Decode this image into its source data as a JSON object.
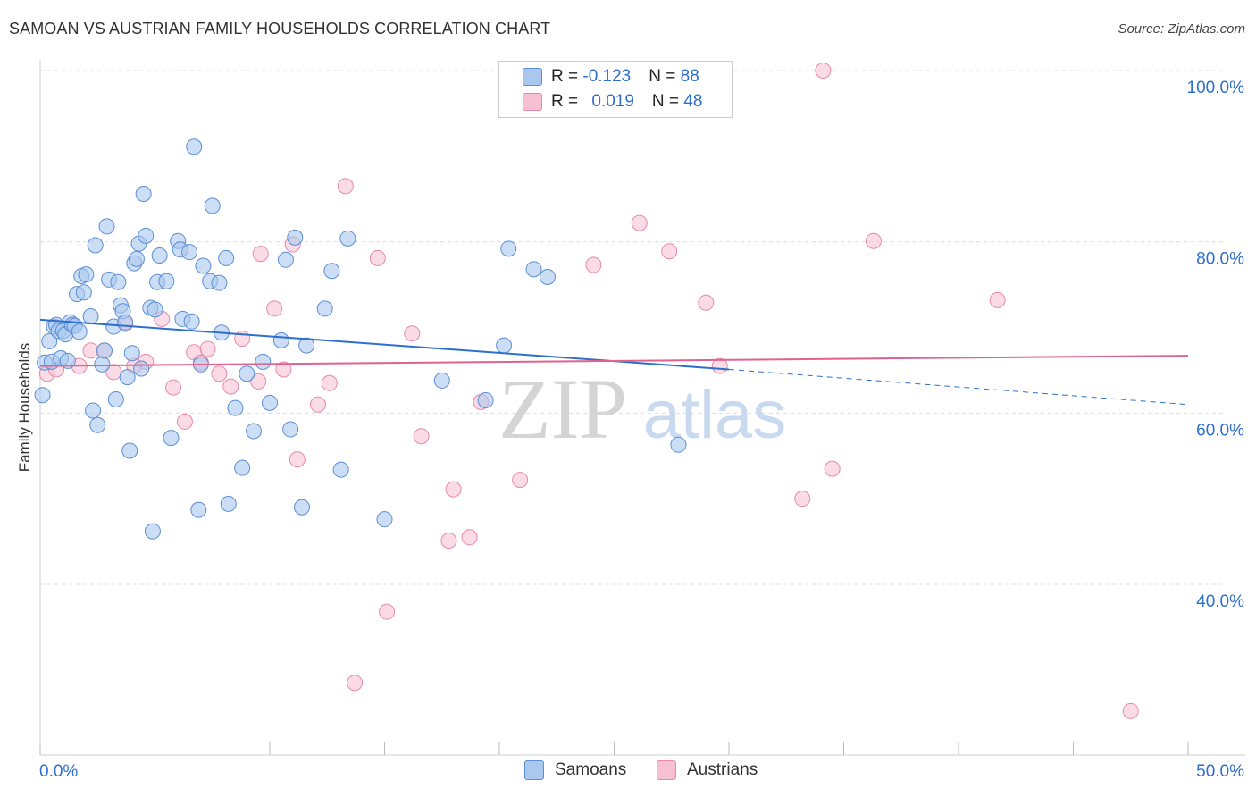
{
  "title": "SAMOAN VS AUSTRIAN FAMILY HOUSEHOLDS CORRELATION CHART",
  "source": "Source: ZipAtlas.com",
  "watermark": {
    "zip": "ZIP",
    "atlas": "atlas"
  },
  "legend_top": {
    "rows": [
      {
        "r_label": "R = ",
        "r_value": "-0.123",
        "n_label": "N = ",
        "n_value": "88"
      },
      {
        "r_label": "R = ",
        "r_value": "0.019",
        "n_label": "N = ",
        "n_value": "48"
      }
    ]
  },
  "legend_bottom": {
    "items": [
      {
        "label": "Samoans"
      },
      {
        "label": "Austrians"
      }
    ]
  },
  "colors": {
    "samoan_fill": "#aac8ee",
    "samoan_stroke": "#5b8fd4",
    "samoan_line": "#2c6fcd",
    "austrian_fill": "#f7bfd2",
    "austrian_stroke": "#e889aa",
    "austrian_line": "#e0628e",
    "axis_label": "#2c6fcd",
    "grid": "#dddddd"
  },
  "chart_data": {
    "type": "scatter",
    "title": "SAMOAN VS AUSTRIAN FAMILY HOUSEHOLDS CORRELATION CHART",
    "xlabel": "",
    "ylabel": "Family Households",
    "xlim": [
      0,
      50
    ],
    "ylim": [
      18,
      102
    ],
    "x_tick_labels": [
      "0.0%",
      "50.0%"
    ],
    "y_ticks": [
      40,
      60,
      80,
      100
    ],
    "y_tick_labels": [
      "40.0%",
      "60.0%",
      "80.0%",
      "100.0%"
    ],
    "series": [
      {
        "name": "Samoans",
        "r": -0.123,
        "n": 88,
        "trend": {
          "x0": 0,
          "y0": 70.9,
          "x1": 30,
          "y1": 65.1,
          "dash_to_x": 50,
          "dash_to_y": 61.0
        },
        "points": [
          [
            0.1,
            62.1
          ],
          [
            0.2,
            65.9
          ],
          [
            0.4,
            68.4
          ],
          [
            0.5,
            66.0
          ],
          [
            0.6,
            70.1
          ],
          [
            0.7,
            70.3
          ],
          [
            0.8,
            69.6
          ],
          [
            0.9,
            66.4
          ],
          [
            1.0,
            69.6
          ],
          [
            1.1,
            69.2
          ],
          [
            1.2,
            66.1
          ],
          [
            1.3,
            70.6
          ],
          [
            1.4,
            70.3
          ],
          [
            1.5,
            70.2
          ],
          [
            1.6,
            73.9
          ],
          [
            1.7,
            69.5
          ],
          [
            1.8,
            76.0
          ],
          [
            1.9,
            74.1
          ],
          [
            2.0,
            76.2
          ],
          [
            2.2,
            71.3
          ],
          [
            2.3,
            60.3
          ],
          [
            2.4,
            79.6
          ],
          [
            2.5,
            58.6
          ],
          [
            2.7,
            65.7
          ],
          [
            2.8,
            67.3
          ],
          [
            2.9,
            81.8
          ],
          [
            3.0,
            75.6
          ],
          [
            3.2,
            70.1
          ],
          [
            3.3,
            61.6
          ],
          [
            3.4,
            75.3
          ],
          [
            3.5,
            72.6
          ],
          [
            3.6,
            71.9
          ],
          [
            3.7,
            70.6
          ],
          [
            3.8,
            64.2
          ],
          [
            3.9,
            55.6
          ],
          [
            4.0,
            67.0
          ],
          [
            4.1,
            77.5
          ],
          [
            4.2,
            78.0
          ],
          [
            4.3,
            79.8
          ],
          [
            4.4,
            65.2
          ],
          [
            4.5,
            85.6
          ],
          [
            4.6,
            80.7
          ],
          [
            4.8,
            72.3
          ],
          [
            4.9,
            46.2
          ],
          [
            5.0,
            72.1
          ],
          [
            5.1,
            75.3
          ],
          [
            5.2,
            78.4
          ],
          [
            5.5,
            75.4
          ],
          [
            5.7,
            57.1
          ],
          [
            6.0,
            80.1
          ],
          [
            6.1,
            79.1
          ],
          [
            6.2,
            71.0
          ],
          [
            6.5,
            78.8
          ],
          [
            6.6,
            70.7
          ],
          [
            6.7,
            91.1
          ],
          [
            6.9,
            48.7
          ],
          [
            7.0,
            65.7
          ],
          [
            7.1,
            77.2
          ],
          [
            7.4,
            75.4
          ],
          [
            7.5,
            84.2
          ],
          [
            7.8,
            75.2
          ],
          [
            7.9,
            69.4
          ],
          [
            8.1,
            78.1
          ],
          [
            8.2,
            49.4
          ],
          [
            8.5,
            60.6
          ],
          [
            8.8,
            53.6
          ],
          [
            9.0,
            64.6
          ],
          [
            9.3,
            57.9
          ],
          [
            9.7,
            66.0
          ],
          [
            10.0,
            61.2
          ],
          [
            10.5,
            68.5
          ],
          [
            10.7,
            77.9
          ],
          [
            10.9,
            58.1
          ],
          [
            11.1,
            80.5
          ],
          [
            11.4,
            49.0
          ],
          [
            11.6,
            67.9
          ],
          [
            12.4,
            72.2
          ],
          [
            12.7,
            76.6
          ],
          [
            13.1,
            53.4
          ],
          [
            13.4,
            80.4
          ],
          [
            15.0,
            47.6
          ],
          [
            17.5,
            63.8
          ],
          [
            19.4,
            61.5
          ],
          [
            20.2,
            67.9
          ],
          [
            20.4,
            79.2
          ],
          [
            21.5,
            76.8
          ],
          [
            22.1,
            75.9
          ],
          [
            27.8,
            56.3
          ]
        ]
      },
      {
        "name": "Austrians",
        "r": 0.019,
        "n": 48,
        "trend": {
          "x0": 0,
          "y0": 65.5,
          "x1": 50,
          "y1": 66.7
        },
        "points": [
          [
            0.3,
            64.6
          ],
          [
            0.7,
            65.1
          ],
          [
            1.7,
            65.5
          ],
          [
            2.2,
            67.3
          ],
          [
            2.8,
            67.3
          ],
          [
            3.2,
            64.8
          ],
          [
            3.7,
            70.4
          ],
          [
            4.1,
            65.5
          ],
          [
            4.6,
            66.0
          ],
          [
            5.3,
            71.0
          ],
          [
            5.8,
            63.0
          ],
          [
            6.3,
            59.0
          ],
          [
            6.7,
            67.1
          ],
          [
            7.0,
            65.9
          ],
          [
            7.3,
            67.5
          ],
          [
            7.8,
            64.6
          ],
          [
            8.3,
            63.1
          ],
          [
            8.8,
            68.7
          ],
          [
            9.5,
            63.7
          ],
          [
            9.6,
            78.6
          ],
          [
            10.2,
            72.2
          ],
          [
            10.6,
            65.1
          ],
          [
            11.0,
            79.7
          ],
          [
            11.2,
            54.6
          ],
          [
            12.1,
            61.0
          ],
          [
            12.6,
            63.5
          ],
          [
            13.3,
            86.5
          ],
          [
            13.7,
            28.5
          ],
          [
            14.7,
            78.1
          ],
          [
            15.1,
            36.8
          ],
          [
            16.2,
            69.3
          ],
          [
            16.6,
            57.3
          ],
          [
            17.8,
            45.1
          ],
          [
            18.0,
            51.1
          ],
          [
            18.7,
            45.5
          ],
          [
            19.2,
            61.3
          ],
          [
            20.9,
            52.2
          ],
          [
            24.1,
            77.3
          ],
          [
            26.1,
            82.2
          ],
          [
            27.4,
            78.9
          ],
          [
            29.0,
            72.9
          ],
          [
            29.6,
            65.5
          ],
          [
            33.2,
            50.0
          ],
          [
            34.1,
            100.0
          ],
          [
            34.5,
            53.5
          ],
          [
            36.3,
            80.1
          ],
          [
            41.7,
            73.2
          ],
          [
            47.5,
            25.2
          ]
        ]
      }
    ]
  }
}
